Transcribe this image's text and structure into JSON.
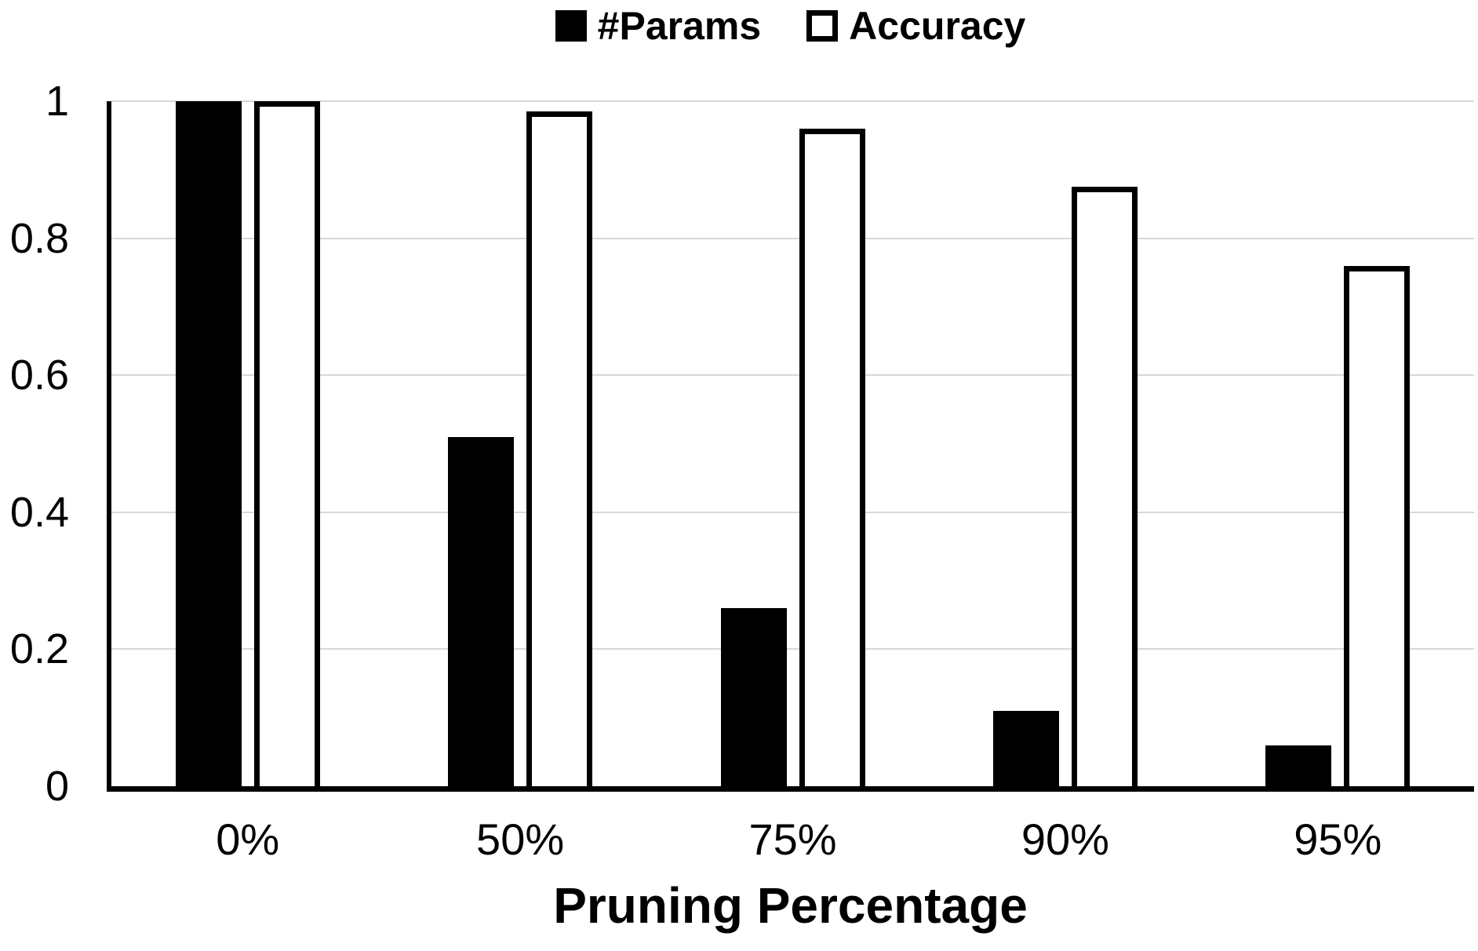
{
  "chart_data": {
    "type": "bar",
    "title": "",
    "categories": [
      "0%",
      "50%",
      "75%",
      "90%",
      "95%"
    ],
    "series": [
      {
        "name": "#Params",
        "style": "filled",
        "color": "#000000",
        "values": [
          1.0,
          0.51,
          0.26,
          0.11,
          0.06
        ]
      },
      {
        "name": "Accuracy",
        "style": "outlined",
        "color": "#ffffff",
        "values": [
          1.0,
          0.985,
          0.96,
          0.875,
          0.76
        ]
      }
    ],
    "xlabel": "Pruning Percentage",
    "ylabel": "",
    "ylim": [
      0,
      1
    ],
    "yticks": [
      0,
      0.2,
      0.4,
      0.6,
      0.8,
      1
    ],
    "ytick_labels": [
      "0",
      "0.2",
      "0.4",
      "0.6",
      "0.8",
      "1"
    ],
    "grid": true,
    "gridline_color": "#d8d8d8",
    "axis_color": "#000000",
    "background_color": "#ffffff",
    "legend_position": "top-center"
  }
}
